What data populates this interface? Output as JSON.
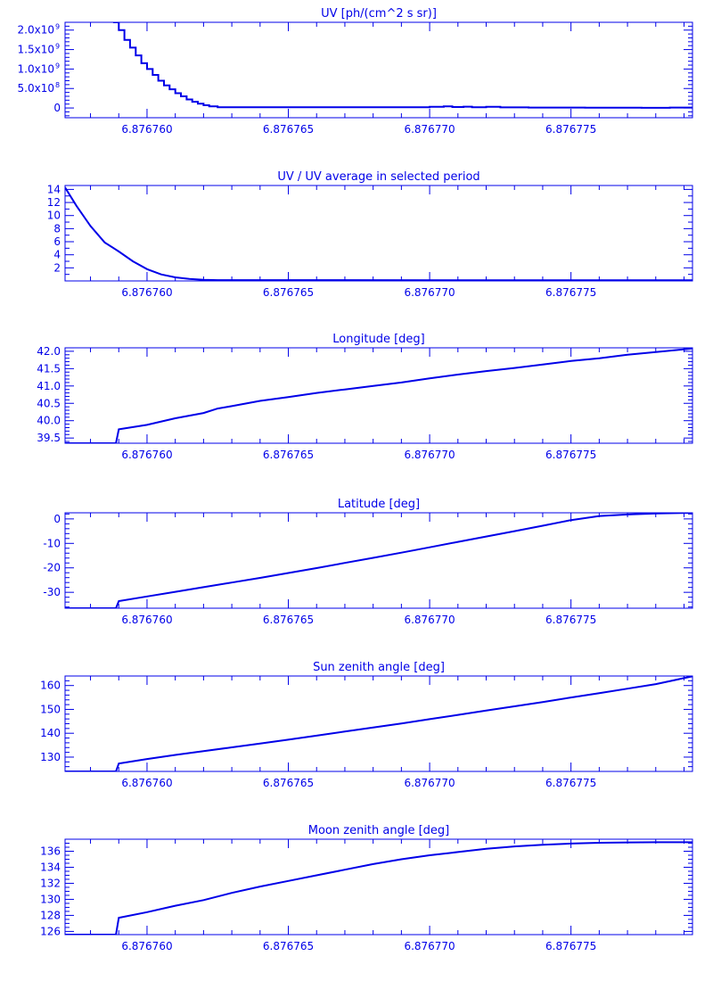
{
  "colors": {
    "ink": "#0000e8",
    "background": "#ffffff"
  },
  "x_ticks": [
    "6.876760",
    "6.876765",
    "6.876770",
    "6.876775"
  ],
  "chart_data": [
    {
      "type": "line",
      "title": "UV [ph/(cm^2 s sr)]",
      "step": true,
      "xlim": [
        6.8767571,
        6.8767793
      ],
      "ylim": [
        -250000000,
        2200000000
      ],
      "yticks": [
        {
          "value": 0,
          "label": "0"
        },
        {
          "value": 500000000,
          "label": "5.0x10",
          "exp": "8"
        },
        {
          "value": 1000000000,
          "label": "1.0x10",
          "exp": "9"
        },
        {
          "value": 1500000000,
          "label": "1.5x10",
          "exp": "9"
        },
        {
          "value": 2000000000,
          "label": "2.0x10",
          "exp": "9"
        }
      ],
      "yminor": 5,
      "x": [
        6.8767588,
        6.876759,
        6.8767592,
        6.8767594,
        6.8767596,
        6.8767598,
        6.87676,
        6.8767602,
        6.8767604,
        6.8767606,
        6.8767608,
        6.876761,
        6.8767612,
        6.8767614,
        6.8767616,
        6.8767618,
        6.876762,
        6.8767622,
        6.8767625,
        6.87677,
        6.8767705,
        6.8767708,
        6.8767712,
        6.8767715,
        6.876772,
        6.8767725,
        6.8767735,
        6.8767745,
        6.8767755,
        6.8767765,
        6.8767775,
        6.8767785,
        6.8767793
      ],
      "y": [
        2200000000,
        2000000000,
        1750000000,
        1550000000,
        1350000000,
        1150000000,
        1000000000,
        850000000,
        700000000,
        580000000,
        480000000,
        380000000,
        300000000,
        220000000,
        160000000,
        110000000,
        70000000,
        40000000,
        20000000,
        30000000,
        40000000,
        25000000,
        35000000,
        20000000,
        30000000,
        15000000,
        12000000,
        10000000,
        8000000,
        6000000,
        5000000,
        10000000,
        12000000
      ]
    },
    {
      "type": "line",
      "title": "UV / UV average in selected period",
      "xlim": [
        6.8767571,
        6.8767793
      ],
      "ylim": [
        0,
        14.6
      ],
      "yticks": [
        {
          "value": 2,
          "label": "2"
        },
        {
          "value": 4,
          "label": "4"
        },
        {
          "value": 6,
          "label": "6"
        },
        {
          "value": 8,
          "label": "8"
        },
        {
          "value": 10,
          "label": "10"
        },
        {
          "value": 12,
          "label": "12"
        },
        {
          "value": 14,
          "label": "14"
        }
      ],
      "yminor": 2,
      "x": [
        6.8767571,
        6.8767575,
        6.876758,
        6.8767585,
        6.876759,
        6.8767595,
        6.87676,
        6.8767605,
        6.876761,
        6.8767615,
        6.876762,
        6.8767625,
        6.8767793
      ],
      "y": [
        14.3,
        11.5,
        8.4,
        5.9,
        4.5,
        3.0,
        1.8,
        1.0,
        0.55,
        0.3,
        0.18,
        0.12,
        0.1
      ]
    },
    {
      "type": "line",
      "title": "Longitude [deg]",
      "xlim": [
        6.8767571,
        6.8767793
      ],
      "ylim": [
        39.35,
        42.1
      ],
      "yticks": [
        {
          "value": 39.5,
          "label": "39.5"
        },
        {
          "value": 40.0,
          "label": "40.0"
        },
        {
          "value": 40.5,
          "label": "40.5"
        },
        {
          "value": 41.0,
          "label": "41.0"
        },
        {
          "value": 41.5,
          "label": "41.5"
        },
        {
          "value": 42.0,
          "label": "42.0"
        }
      ],
      "yminor": 5,
      "x": [
        6.8767571,
        6.8767589,
        6.876759,
        6.87676,
        6.876761,
        6.876762,
        6.8767625,
        6.876763,
        6.876764,
        6.876765,
        6.876766,
        6.876767,
        6.876768,
        6.876769,
        6.87677,
        6.876771,
        6.876772,
        6.876773,
        6.876774,
        6.876775,
        6.876776,
        6.876777,
        6.876778,
        6.8767793
      ],
      "y": [
        39.35,
        39.35,
        39.75,
        39.88,
        40.07,
        40.22,
        40.35,
        40.42,
        40.57,
        40.68,
        40.8,
        40.9,
        41.0,
        41.1,
        41.22,
        41.33,
        41.43,
        41.52,
        41.62,
        41.72,
        41.8,
        41.9,
        41.98,
        42.08
      ]
    },
    {
      "type": "line",
      "title": "Latitude [deg]",
      "xlim": [
        6.8767571,
        6.8767793
      ],
      "ylim": [
        -36.5,
        2.5
      ],
      "yticks": [
        {
          "value": -30,
          "label": "-30"
        },
        {
          "value": -20,
          "label": "-20"
        },
        {
          "value": -10,
          "label": "-10"
        },
        {
          "value": 0,
          "label": "0"
        }
      ],
      "yminor": 5,
      "x": [
        6.8767571,
        6.8767589,
        6.876759,
        6.87676,
        6.876761,
        6.876762,
        6.876763,
        6.876764,
        6.876765,
        6.876766,
        6.876767,
        6.876768,
        6.876769,
        6.87677,
        6.876771,
        6.876772,
        6.876773,
        6.876774,
        6.876775,
        6.876776,
        6.876777,
        6.876778,
        6.8767793
      ],
      "y": [
        -36.5,
        -36.5,
        -33.6,
        -31.7,
        -29.8,
        -27.9,
        -26.0,
        -24.1,
        -22.1,
        -20.1,
        -18.0,
        -15.9,
        -13.8,
        -11.6,
        -9.4,
        -7.2,
        -5.0,
        -2.8,
        -0.5,
        1.2,
        1.8,
        2.2,
        2.5
      ]
    },
    {
      "type": "line",
      "title": "Sun zenith angle [deg]",
      "xlim": [
        6.8767571,
        6.8767793
      ],
      "ylim": [
        124,
        164
      ],
      "yticks": [
        {
          "value": 130,
          "label": "130"
        },
        {
          "value": 140,
          "label": "140"
        },
        {
          "value": 150,
          "label": "150"
        },
        {
          "value": 160,
          "label": "160"
        }
      ],
      "yminor": 5,
      "x": [
        6.8767571,
        6.8767589,
        6.876759,
        6.87676,
        6.876761,
        6.876762,
        6.876763,
        6.876764,
        6.876765,
        6.876766,
        6.876767,
        6.876768,
        6.876769,
        6.87677,
        6.876771,
        6.876772,
        6.876773,
        6.876774,
        6.876775,
        6.876776,
        6.876777,
        6.876778,
        6.8767793
      ],
      "y": [
        124,
        124,
        127.3,
        129.2,
        130.9,
        132.5,
        134.1,
        135.7,
        137.3,
        139.0,
        140.7,
        142.4,
        144.1,
        145.9,
        147.7,
        149.5,
        151.3,
        153.1,
        155.0,
        156.8,
        158.7,
        160.6,
        163.9
      ]
    },
    {
      "type": "line",
      "title": "Moon zenith angle [deg]",
      "xlim": [
        6.8767571,
        6.8767793
      ],
      "ylim": [
        125.6,
        137.5
      ],
      "yticks": [
        {
          "value": 126,
          "label": "126"
        },
        {
          "value": 128,
          "label": "128"
        },
        {
          "value": 130,
          "label": "130"
        },
        {
          "value": 132,
          "label": "132"
        },
        {
          "value": 134,
          "label": "134"
        },
        {
          "value": 136,
          "label": "136"
        }
      ],
      "yminor": 4,
      "x": [
        6.8767571,
        6.8767589,
        6.876759,
        6.87676,
        6.876761,
        6.876762,
        6.876763,
        6.876764,
        6.876765,
        6.876766,
        6.876767,
        6.876768,
        6.876769,
        6.87677,
        6.876771,
        6.876772,
        6.876773,
        6.876774,
        6.876775,
        6.876776,
        6.876777,
        6.876778,
        6.8767793
      ],
      "y": [
        125.6,
        125.6,
        127.7,
        128.4,
        129.2,
        129.9,
        130.8,
        131.6,
        132.3,
        133.0,
        133.7,
        134.4,
        135.0,
        135.5,
        135.9,
        136.3,
        136.6,
        136.8,
        136.95,
        137.05,
        137.1,
        137.12,
        137.12
      ]
    }
  ]
}
